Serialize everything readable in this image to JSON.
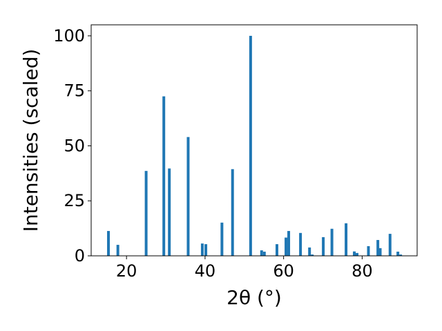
{
  "chart_data": {
    "type": "bar",
    "xlabel": "2θ (°)",
    "ylabel": "Intensities (scaled)",
    "xlim": [
      11,
      94
    ],
    "ylim": [
      0,
      105
    ],
    "x_ticks": [
      20,
      40,
      60,
      80
    ],
    "y_ticks": [
      0,
      25,
      50,
      75,
      100
    ],
    "grid": false,
    "color": "#1f77b4",
    "bar_width": 0.7,
    "bars": [
      {
        "x": 15.4,
        "y": 11.3
      },
      {
        "x": 17.8,
        "y": 5.0
      },
      {
        "x": 25.0,
        "y": 38.6
      },
      {
        "x": 29.5,
        "y": 72.5
      },
      {
        "x": 30.9,
        "y": 39.7
      },
      {
        "x": 35.7,
        "y": 54.0
      },
      {
        "x": 39.3,
        "y": 5.6
      },
      {
        "x": 40.2,
        "y": 5.3
      },
      {
        "x": 44.3,
        "y": 15.1
      },
      {
        "x": 47.0,
        "y": 39.4
      },
      {
        "x": 51.6,
        "y": 100.0
      },
      {
        "x": 54.4,
        "y": 2.5
      },
      {
        "x": 55.1,
        "y": 1.9
      },
      {
        "x": 58.3,
        "y": 5.3
      },
      {
        "x": 60.6,
        "y": 8.3
      },
      {
        "x": 61.3,
        "y": 11.3
      },
      {
        "x": 64.3,
        "y": 10.4
      },
      {
        "x": 66.6,
        "y": 3.8
      },
      {
        "x": 67.3,
        "y": 0.6
      },
      {
        "x": 70.1,
        "y": 8.5
      },
      {
        "x": 72.3,
        "y": 12.3
      },
      {
        "x": 75.9,
        "y": 14.8
      },
      {
        "x": 78.0,
        "y": 2.0
      },
      {
        "x": 78.7,
        "y": 1.3
      },
      {
        "x": 81.6,
        "y": 4.4
      },
      {
        "x": 84.0,
        "y": 7.2
      },
      {
        "x": 84.6,
        "y": 3.5
      },
      {
        "x": 87.1,
        "y": 10.0
      },
      {
        "x": 89.1,
        "y": 1.9
      },
      {
        "x": 89.8,
        "y": 0.6
      }
    ]
  }
}
